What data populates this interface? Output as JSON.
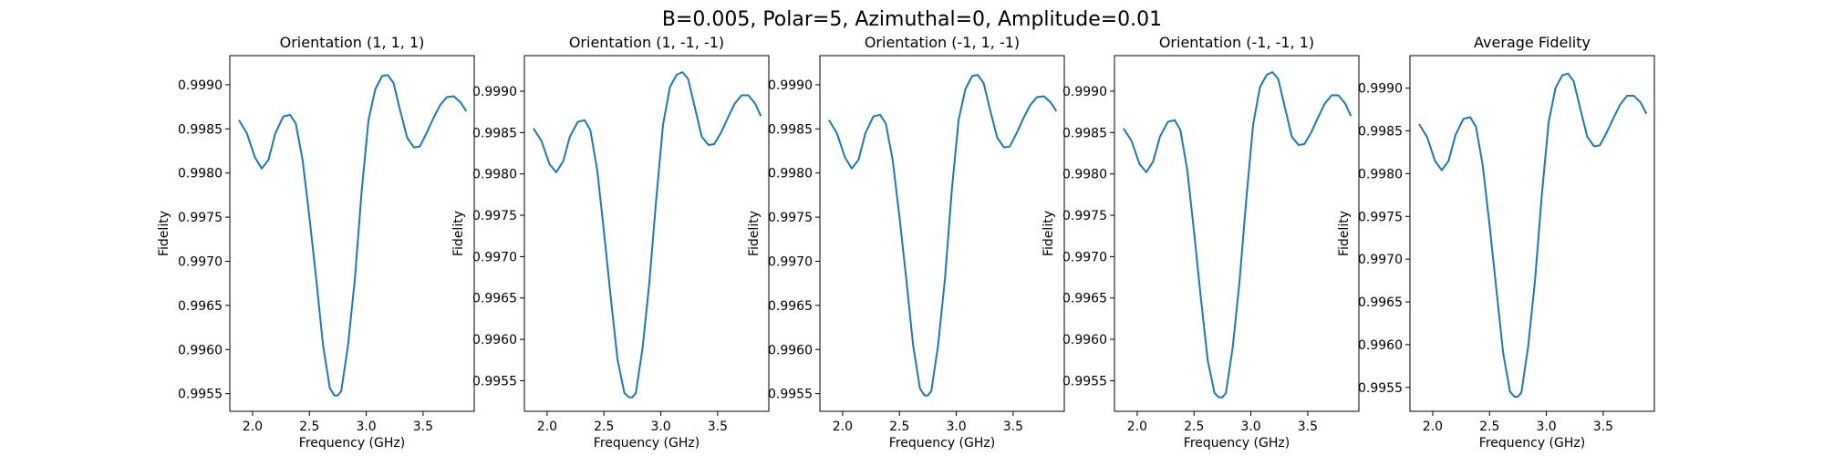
{
  "figure": {
    "suptitle": "B=0.005, Polar=5, Azimuthal=0, Amplitude=0.01"
  },
  "chart_data": [
    {
      "type": "line",
      "title": "Orientation (1, 1, 1)",
      "xlabel": "Frequency (GHz)",
      "ylabel": "Fidelity",
      "xlim": [
        1.8,
        3.95
      ],
      "ylim": [
        0.9953,
        0.99933
      ],
      "xticks": [
        "2.0",
        "2.5",
        "3.0",
        "3.5"
      ],
      "yticks": [
        "0.9955",
        "0.9960",
        "0.9965",
        "0.9970",
        "0.9975",
        "0.9980",
        "0.9985",
        "0.9990"
      ],
      "series": [
        {
          "color": "#1f77b4",
          "x": [
            1.88,
            1.95,
            2.02,
            2.08,
            2.14,
            2.2,
            2.27,
            2.33,
            2.38,
            2.44,
            2.5,
            2.56,
            2.62,
            2.68,
            2.72,
            2.75,
            2.78,
            2.84,
            2.9,
            2.96,
            3.02,
            3.08,
            3.14,
            3.19,
            3.24,
            3.3,
            3.36,
            3.42,
            3.47,
            3.53,
            3.59,
            3.65,
            3.71,
            3.77,
            3.83,
            3.88
          ],
          "y": [
            0.9986,
            0.99845,
            0.99818,
            0.99805,
            0.99815,
            0.99845,
            0.99864,
            0.99866,
            0.99856,
            0.99815,
            0.9975,
            0.9968,
            0.99605,
            0.99556,
            0.99548,
            0.99548,
            0.99553,
            0.99605,
            0.9968,
            0.9978,
            0.9986,
            0.99895,
            0.9991,
            0.99911,
            0.99902,
            0.9987,
            0.9984,
            0.99829,
            0.9983,
            0.99845,
            0.99862,
            0.99877,
            0.99886,
            0.99887,
            0.9988,
            0.9987
          ]
        }
      ]
    },
    {
      "type": "line",
      "title": "Orientation (1, -1, -1)",
      "xlabel": "Frequency (GHz)",
      "ylabel": "Fidelity",
      "xlim": [
        1.8,
        3.95
      ],
      "ylim": [
        0.99513,
        0.99943
      ],
      "xticks": [
        "2.0",
        "2.5",
        "3.0",
        "3.5"
      ],
      "yticks": [
        "0.9955",
        "0.9960",
        "0.9965",
        "0.9970",
        "0.9975",
        "0.9980",
        "0.9985",
        "0.9990"
      ],
      "series": [
        {
          "color": "#1f77b4",
          "x": [
            1.88,
            1.95,
            2.02,
            2.08,
            2.14,
            2.2,
            2.27,
            2.33,
            2.38,
            2.44,
            2.5,
            2.56,
            2.62,
            2.68,
            2.72,
            2.75,
            2.78,
            2.84,
            2.9,
            2.96,
            3.02,
            3.08,
            3.14,
            3.19,
            3.24,
            3.3,
            3.36,
            3.42,
            3.47,
            3.53,
            3.59,
            3.65,
            3.71,
            3.77,
            3.83,
            3.88
          ],
          "y": [
            0.99855,
            0.9984,
            0.99812,
            0.99802,
            0.99815,
            0.99845,
            0.99863,
            0.99865,
            0.99853,
            0.99805,
            0.9973,
            0.9965,
            0.99575,
            0.99535,
            0.9953,
            0.9953,
            0.99535,
            0.9959,
            0.9967,
            0.9977,
            0.9986,
            0.99905,
            0.9992,
            0.99923,
            0.99915,
            0.9988,
            0.99845,
            0.99835,
            0.99836,
            0.9985,
            0.99868,
            0.99885,
            0.99895,
            0.99895,
            0.99885,
            0.9987
          ]
        }
      ]
    },
    {
      "type": "line",
      "title": "Orientation (-1, 1, -1)",
      "xlabel": "Frequency (GHz)",
      "ylabel": "Fidelity",
      "xlim": [
        1.8,
        3.95
      ],
      "ylim": [
        0.9953,
        0.99933
      ],
      "xticks": [
        "2.0",
        "2.5",
        "3.0",
        "3.5"
      ],
      "yticks": [
        "0.9955",
        "0.9960",
        "0.9965",
        "0.9970",
        "0.9975",
        "0.9980",
        "0.9985",
        "0.9990"
      ],
      "series": [
        {
          "color": "#1f77b4",
          "x": [
            1.88,
            1.95,
            2.02,
            2.08,
            2.14,
            2.2,
            2.27,
            2.33,
            2.38,
            2.44,
            2.5,
            2.56,
            2.62,
            2.68,
            2.72,
            2.75,
            2.78,
            2.84,
            2.9,
            2.96,
            3.02,
            3.08,
            3.14,
            3.19,
            3.24,
            3.3,
            3.36,
            3.42,
            3.47,
            3.53,
            3.59,
            3.65,
            3.71,
            3.77,
            3.83,
            3.88
          ],
          "y": [
            0.9986,
            0.99845,
            0.99818,
            0.99805,
            0.99815,
            0.99845,
            0.99864,
            0.99866,
            0.99856,
            0.99815,
            0.9975,
            0.9968,
            0.99605,
            0.99556,
            0.99548,
            0.99548,
            0.99553,
            0.99605,
            0.9968,
            0.9978,
            0.9986,
            0.99895,
            0.9991,
            0.99911,
            0.99902,
            0.9987,
            0.9984,
            0.99829,
            0.9983,
            0.99845,
            0.99862,
            0.99877,
            0.99886,
            0.99887,
            0.9988,
            0.9987
          ]
        }
      ]
    },
    {
      "type": "line",
      "title": "Orientation (-1, -1, 1)",
      "xlabel": "Frequency (GHz)",
      "ylabel": "Fidelity",
      "xlim": [
        1.8,
        3.95
      ],
      "ylim": [
        0.99513,
        0.99943
      ],
      "xticks": [
        "2.0",
        "2.5",
        "3.0",
        "3.5"
      ],
      "yticks": [
        "0.9955",
        "0.9960",
        "0.9965",
        "0.9970",
        "0.9975",
        "0.9980",
        "0.9985",
        "0.9990"
      ],
      "series": [
        {
          "color": "#1f77b4",
          "x": [
            1.88,
            1.95,
            2.02,
            2.08,
            2.14,
            2.2,
            2.27,
            2.33,
            2.38,
            2.44,
            2.5,
            2.56,
            2.62,
            2.68,
            2.72,
            2.75,
            2.78,
            2.84,
            2.9,
            2.96,
            3.02,
            3.08,
            3.14,
            3.19,
            3.24,
            3.3,
            3.36,
            3.42,
            3.47,
            3.53,
            3.59,
            3.65,
            3.71,
            3.77,
            3.83,
            3.88
          ],
          "y": [
            0.99855,
            0.9984,
            0.99812,
            0.99802,
            0.99815,
            0.99845,
            0.99863,
            0.99865,
            0.99853,
            0.99805,
            0.9973,
            0.9965,
            0.99575,
            0.99535,
            0.9953,
            0.9953,
            0.99535,
            0.9959,
            0.9967,
            0.9977,
            0.9986,
            0.99905,
            0.9992,
            0.99923,
            0.99915,
            0.9988,
            0.99845,
            0.99835,
            0.99836,
            0.9985,
            0.99868,
            0.99885,
            0.99895,
            0.99895,
            0.99885,
            0.9987
          ]
        }
      ]
    },
    {
      "type": "line",
      "title": "Average Fidelity",
      "xlabel": "Frequency (GHz)",
      "ylabel": "Fidelity",
      "xlim": [
        1.8,
        3.95
      ],
      "ylim": [
        0.99522,
        0.99938
      ],
      "xticks": [
        "2.0",
        "2.5",
        "3.0",
        "3.5"
      ],
      "yticks": [
        "0.9955",
        "0.9960",
        "0.9965",
        "0.9970",
        "0.9975",
        "0.9980",
        "0.9985",
        "0.9990"
      ],
      "series": [
        {
          "color": "#1f77b4",
          "x": [
            1.88,
            1.95,
            2.02,
            2.08,
            2.14,
            2.2,
            2.27,
            2.33,
            2.38,
            2.44,
            2.5,
            2.56,
            2.62,
            2.68,
            2.72,
            2.75,
            2.78,
            2.84,
            2.9,
            2.96,
            3.02,
            3.08,
            3.14,
            3.19,
            3.24,
            3.3,
            3.36,
            3.42,
            3.47,
            3.53,
            3.59,
            3.65,
            3.71,
            3.77,
            3.83,
            3.88
          ],
          "y": [
            0.99858,
            0.99843,
            0.99815,
            0.99804,
            0.99815,
            0.99845,
            0.99864,
            0.99866,
            0.99855,
            0.9981,
            0.9974,
            0.99665,
            0.9959,
            0.99545,
            0.99539,
            0.99539,
            0.99544,
            0.99598,
            0.99675,
            0.99775,
            0.9986,
            0.999,
            0.99915,
            0.99917,
            0.99908,
            0.99875,
            0.99843,
            0.99832,
            0.99833,
            0.99848,
            0.99865,
            0.99881,
            0.99891,
            0.99891,
            0.99883,
            0.9987
          ]
        }
      ]
    }
  ]
}
